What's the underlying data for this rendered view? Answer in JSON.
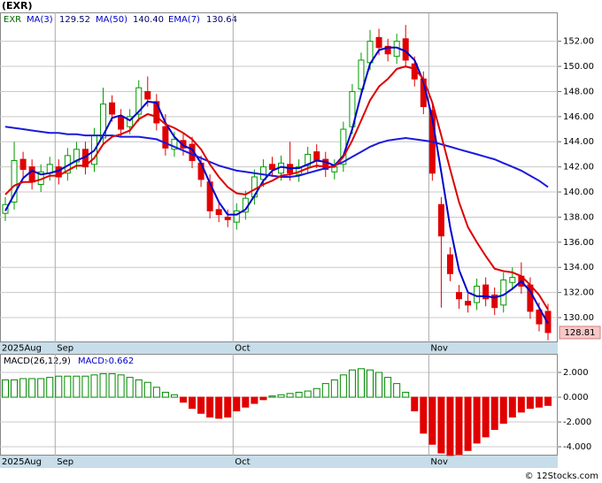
{
  "footer": "© 12Stocks.com",
  "chart_data": [
    {
      "type": "candlestick",
      "title": "(EXR)",
      "symbol": "EXR",
      "categories": [
        "2025Aug",
        null,
        null,
        null,
        null,
        null,
        "Sep",
        null,
        null,
        null,
        null,
        null,
        null,
        null,
        null,
        null,
        null,
        null,
        null,
        null,
        null,
        null,
        null,
        null,
        null,
        null,
        "Oct",
        null,
        null,
        null,
        null,
        null,
        null,
        null,
        null,
        null,
        null,
        null,
        null,
        null,
        null,
        null,
        null,
        null,
        null,
        null,
        null,
        null,
        "Nov",
        null,
        null,
        null,
        null,
        null,
        null,
        null,
        null,
        null,
        null,
        null,
        null,
        null
      ],
      "open": [
        138.3,
        139.2,
        142.6,
        142.0,
        140.6,
        141.5,
        142.0,
        141.5,
        142.4,
        143.4,
        142.2,
        144.3,
        147.1,
        146.0,
        145.2,
        146.2,
        148.0,
        147.2,
        145.2,
        143.4,
        144.1,
        143.8,
        142.3,
        140.8,
        138.6,
        138.0,
        137.6,
        138.4,
        139.6,
        141.0,
        142.2,
        141.5,
        142.2,
        141.4,
        142.1,
        143.2,
        142.6,
        141.6,
        142.2,
        145.2,
        148.2,
        150.3,
        152.3,
        151.6,
        150.8,
        152.2,
        150.2,
        149.0,
        146.5,
        139.0,
        135.0,
        132.0,
        131.3,
        131.2,
        132.6,
        131.8,
        131.0,
        132.8,
        133.3,
        132.6,
        130.6,
        130.5
      ],
      "high": [
        139.6,
        144.0,
        143.2,
        142.6,
        142.2,
        142.8,
        142.6,
        143.5,
        144.0,
        144.0,
        145.1,
        148.3,
        147.7,
        146.6,
        146.6,
        148.9,
        149.2,
        147.8,
        146.2,
        144.8,
        144.7,
        144.4,
        142.9,
        141.4,
        139.2,
        138.6,
        139.1,
        140.1,
        141.8,
        142.6,
        142.8,
        142.9,
        144.0,
        142.6,
        143.6,
        143.8,
        143.2,
        142.6,
        145.6,
        148.6,
        151.1,
        152.9,
        153.0,
        152.2,
        152.6,
        153.3,
        150.8,
        149.6,
        147.1,
        139.6,
        135.6,
        132.6,
        131.9,
        133.1,
        133.2,
        132.4,
        133.6,
        134.0,
        134.4,
        133.2,
        131.2,
        131.1
      ],
      "low": [
        137.7,
        138.6,
        141.2,
        140.2,
        140.0,
        140.9,
        140.6,
        140.9,
        141.8,
        141.4,
        141.6,
        143.7,
        145.6,
        144.4,
        144.6,
        145.6,
        146.8,
        144.9,
        142.9,
        142.8,
        142.9,
        141.9,
        140.4,
        137.9,
        137.6,
        137.2,
        137.0,
        137.8,
        139.0,
        140.4,
        141.2,
        140.9,
        140.9,
        140.8,
        141.5,
        141.9,
        141.2,
        141.0,
        141.6,
        144.6,
        147.6,
        149.7,
        150.9,
        150.4,
        150.2,
        149.9,
        148.4,
        146.2,
        140.9,
        130.8,
        132.9,
        130.7,
        130.4,
        130.6,
        130.9,
        130.2,
        130.4,
        132.2,
        131.9,
        129.9,
        128.9,
        128.2
      ],
      "close": [
        139.0,
        142.5,
        141.8,
        140.8,
        141.6,
        142.2,
        141.2,
        142.9,
        143.4,
        142.0,
        144.5,
        147.0,
        146.2,
        145.0,
        146.0,
        148.3,
        147.4,
        145.5,
        143.5,
        144.2,
        143.5,
        142.5,
        141.0,
        138.5,
        138.2,
        137.8,
        138.5,
        139.5,
        141.2,
        142.0,
        141.8,
        142.3,
        141.5,
        142.0,
        143.0,
        142.5,
        141.8,
        142.0,
        145.0,
        148.0,
        150.5,
        152.0,
        151.5,
        151.0,
        152.0,
        150.5,
        149.0,
        146.8,
        141.5,
        136.5,
        133.5,
        131.5,
        131.0,
        132.5,
        131.5,
        130.8,
        133.0,
        133.2,
        132.5,
        130.5,
        129.5,
        128.81
      ],
      "up_color": "#009900",
      "down_color": "#e00000",
      "series": [
        {
          "name": "MA(3)",
          "color": "#0000cc",
          "last_value": 129.52,
          "values": [
            138.5,
            139.8,
            141.1,
            141.7,
            141.4,
            141.5,
            141.7,
            142.1,
            142.5,
            142.8,
            143.3,
            144.5,
            145.9,
            146.1,
            145.7,
            146.4,
            147.2,
            147.1,
            145.5,
            144.4,
            143.7,
            143.4,
            142.3,
            140.7,
            139.2,
            138.2,
            138.2,
            138.6,
            139.7,
            140.9,
            141.7,
            142.0,
            141.9,
            141.9,
            142.2,
            142.5,
            142.4,
            142.1,
            142.9,
            145.0,
            147.8,
            150.2,
            151.3,
            151.5,
            151.5,
            151.2,
            150.5,
            148.8,
            145.8,
            141.6,
            137.2,
            133.8,
            132.0,
            131.7,
            131.7,
            131.6,
            131.8,
            132.3,
            132.9,
            132.1,
            130.8,
            129.52
          ]
        },
        {
          "name": "MA(50)",
          "color": "#1a1add",
          "last_value": {
            "value": 140.4,
            "label": "140.40"
          },
          "values": [
            145.2,
            145.1,
            145.0,
            144.9,
            144.8,
            144.7,
            144.7,
            144.6,
            144.6,
            144.5,
            144.5,
            144.5,
            144.5,
            144.4,
            144.4,
            144.4,
            144.3,
            144.2,
            143.9,
            143.6,
            143.3,
            143.0,
            142.7,
            142.4,
            142.1,
            141.9,
            141.7,
            141.6,
            141.5,
            141.4,
            141.3,
            141.2,
            141.2,
            141.3,
            141.5,
            141.7,
            141.9,
            142.1,
            142.4,
            142.8,
            143.2,
            143.6,
            143.9,
            144.1,
            144.2,
            144.3,
            144.2,
            144.1,
            144.0,
            143.8,
            143.6,
            143.4,
            143.2,
            143.0,
            142.8,
            142.6,
            142.3,
            142.0,
            141.7,
            141.3,
            140.9,
            140.4
          ]
        },
        {
          "name": "EMA(7)",
          "color": "#dd0000",
          "last_value": 130.64,
          "values": [
            139.8,
            140.5,
            140.8,
            140.8,
            141.0,
            141.3,
            141.3,
            141.7,
            142.1,
            142.1,
            142.7,
            143.8,
            144.4,
            144.6,
            144.9,
            145.8,
            146.2,
            146.0,
            145.4,
            145.1,
            144.7,
            144.2,
            143.4,
            142.2,
            141.2,
            140.4,
            139.9,
            139.8,
            140.2,
            140.6,
            140.9,
            141.3,
            141.4,
            141.6,
            141.9,
            142.1,
            142.0,
            142.0,
            142.8,
            144.1,
            145.7,
            147.3,
            148.4,
            149.0,
            149.8,
            150.0,
            149.8,
            149.0,
            147.1,
            144.5,
            141.8,
            139.2,
            137.2,
            136.0,
            134.9,
            133.9,
            133.7,
            133.6,
            133.3,
            132.6,
            131.8,
            130.64
          ]
        }
      ],
      "ylim": [
        128.03,
        154.3
      ],
      "yticks": [
        {
          "value": 130,
          "label": "130.00"
        },
        {
          "value": 132,
          "label": "132.00"
        },
        {
          "value": 134,
          "label": "134.00"
        },
        {
          "value": 136,
          "label": "136.00"
        },
        {
          "value": 138,
          "label": "138.00"
        },
        {
          "value": 140,
          "label": "140.00"
        },
        {
          "value": 142,
          "label": "142.00"
        },
        {
          "value": 144,
          "label": "144.00"
        },
        {
          "value": 146,
          "label": "146.00"
        },
        {
          "value": 148,
          "label": "148.00"
        },
        {
          "value": 150,
          "label": "150.00"
        },
        {
          "value": 152,
          "label": "152.00"
        }
      ],
      "grid": true
    },
    {
      "type": "bar",
      "title": "MACD(26,12,9)",
      "value_name": "MACD:",
      "values": [
        1.4,
        1.4,
        1.5,
        1.5,
        1.5,
        1.6,
        1.7,
        1.7,
        1.7,
        1.7,
        1.8,
        1.9,
        1.9,
        1.8,
        1.6,
        1.4,
        1.2,
        0.8,
        0.4,
        0.2,
        -0.4,
        -0.9,
        -1.3,
        -1.6,
        -1.7,
        -1.6,
        -1.1,
        -0.8,
        -0.5,
        -0.2,
        0.1,
        0.2,
        0.3,
        0.4,
        0.5,
        0.7,
        1.1,
        1.4,
        1.8,
        2.2,
        2.3,
        2.2,
        2.0,
        1.6,
        1.1,
        0.4,
        -1.1,
        -2.9,
        -3.8,
        -4.5,
        -4.7,
        -4.6,
        -4.3,
        -3.7,
        -3.2,
        -2.6,
        -2.1,
        -1.6,
        -1.2,
        -0.9,
        -0.8,
        -0.662
      ],
      "up_color": "#008800",
      "down_color": "#e00000",
      "ylim": [
        -4.71,
        3.5
      ],
      "yticks": [
        {
          "value": -4,
          "label": "-4.000"
        },
        {
          "value": -2,
          "label": "-2.000"
        },
        {
          "value": 0,
          "label": "0.000"
        },
        {
          "value": 2,
          "label": "2.000"
        }
      ],
      "grid": true
    }
  ]
}
